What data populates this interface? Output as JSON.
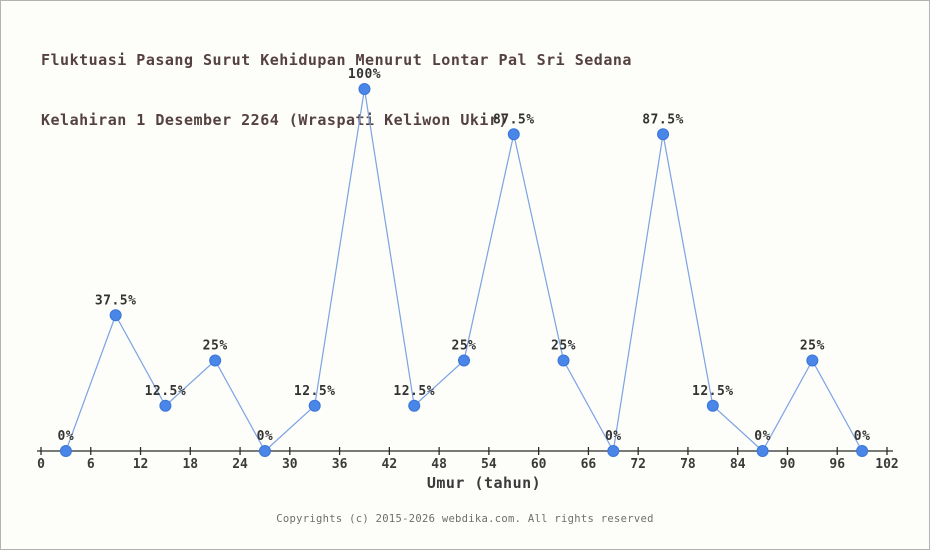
{
  "chart_data": {
    "type": "line",
    "title_lines": [
      "Fluktuasi Pasang Surut Kehidupan Menurut Lontar Pal Sri Sedana",
      "Kelahiran 1 Desember 2264 (Wraspati Keliwon Ukir)"
    ],
    "x": [
      3,
      9,
      15,
      21,
      27,
      33,
      39,
      45,
      51,
      57,
      63,
      69,
      75,
      81,
      87,
      93,
      99
    ],
    "values": [
      0,
      37.5,
      12.5,
      25,
      0,
      12.5,
      100,
      12.5,
      25,
      87.5,
      25,
      0,
      87.5,
      12.5,
      0,
      25,
      0
    ],
    "point_labels": [
      "0%",
      "37.5%",
      "12.5%",
      "25%",
      "0%",
      "12.5%",
      "100%",
      "12.5%",
      "25%",
      "87.5%",
      "25%",
      "0%",
      "87.5%",
      "12.5%",
      "0%",
      "25%",
      "0%"
    ],
    "xlabel": "Umur (tahun)",
    "x_ticks": [
      0,
      6,
      12,
      18,
      24,
      30,
      36,
      42,
      48,
      54,
      60,
      66,
      72,
      78,
      84,
      90,
      96,
      102
    ],
    "xlim": [
      0,
      102
    ],
    "ylim": [
      0,
      100
    ],
    "grid": false,
    "legend": "none",
    "colors": {
      "background": "#fdfdfa",
      "border": "#b3b3b3",
      "title": "#554240",
      "axis": "#2b2b2b",
      "tick_label": "#3a3a3a",
      "point_label": "#333333",
      "line": "#7ba3e3",
      "marker_fill": "#4a86e8",
      "marker_stroke": "#3a76d8",
      "footer": "#6e6e6e"
    }
  },
  "footer": {
    "copyright": "Copyrights (c) 2015-2026 webdika.com. All rights reserved"
  }
}
